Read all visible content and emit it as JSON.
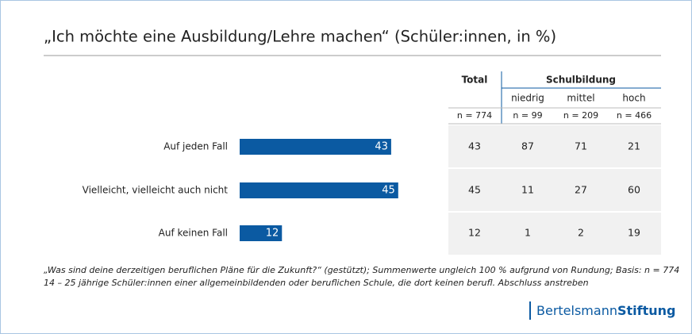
{
  "chart_data": {
    "type": "bar",
    "orientation": "horizontal",
    "title": "„Ich möchte eine Ausbildung/Lehre machen“ (Schüler:innen, in %)",
    "categories": [
      "Auf jeden Fall",
      "Vielleicht, vielleicht auch nicht",
      "Auf keinen Fall"
    ],
    "values": [
      43,
      45,
      12
    ],
    "color": "#0b5aa2"
  },
  "table": {
    "total": "Total",
    "group": "Schulbildung",
    "subgroups": [
      "niedrig",
      "mittel",
      "hoch"
    ],
    "n": [
      "n = 774",
      "n = 99",
      "n = 209",
      "n = 466"
    ],
    "rows": [
      [
        43,
        87,
        71,
        21
      ],
      [
        45,
        11,
        27,
        60
      ],
      [
        12,
        1,
        2,
        19
      ]
    ]
  },
  "footnotes": [
    "„Was sind deine derzeitigen beruflichen Pläne für die Zukunft?“ (gestützt); Summenwerte ungleich 100 % aufgrund von Rundung; Basis: n = 774",
    "14 – 25 jährige Schüler:innen einer allgemeinbildenden oder beruflichen Schule, die dort keinen berufl. Abschluss anstreben"
  ],
  "logo": {
    "part1": "Bertelsmann",
    "part2": "Stiftung"
  }
}
